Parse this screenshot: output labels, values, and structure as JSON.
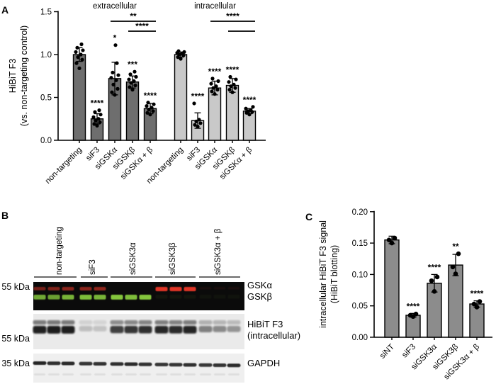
{
  "panels": {
    "a": {
      "letter": "A"
    },
    "b": {
      "letter": "B"
    },
    "c": {
      "letter": "C"
    }
  },
  "colors": {
    "extracellular_bar": "#6e6e6e",
    "intracellular_bar": "#c9c9c9",
    "panel_c_bar": "#8c8c8c",
    "axis": "#000000",
    "gsk_alpha_label": "#cf2b28",
    "gsk_beta_label": "#8fbf6a",
    "gsk_alpha_band": "#e03428",
    "gsk_beta_band": "#8bd13f",
    "dark_band": "#141414",
    "blot1_bg": "#0b0b0b",
    "blot2_bg": "#eaeaea",
    "blot3_bg": "#efefef"
  },
  "chart_data": [
    {
      "panel": "A",
      "type": "bar",
      "ylabel": [
        "HiBiT F3",
        "(vs. non-targeting control)"
      ],
      "ylim": [
        0,
        1.5
      ],
      "yticks": [
        [
          0,
          "0.0"
        ],
        [
          0.5,
          "0.5"
        ],
        [
          1.0,
          "1.0"
        ],
        [
          1.5,
          "1.5"
        ]
      ],
      "categories": [
        "non-targeting",
        "siF3",
        "siGSKα",
        "siGSKβ",
        "siGSKα + β"
      ],
      "groups": [
        {
          "label": "extracellular",
          "color_key": "extracellular_bar",
          "values": [
            1.0,
            0.25,
            0.72,
            0.68,
            0.37
          ],
          "errors": [
            0.08,
            0.06,
            0.19,
            0.07,
            0.06
          ],
          "sig": [
            "",
            "****",
            "*",
            "***",
            "****"
          ],
          "dots": [
            [
              0.84,
              0.9,
              0.94,
              0.97,
              1.0,
              1.03,
              1.05,
              1.08,
              1.12
            ],
            [
              0.17,
              0.19,
              0.21,
              0.23,
              0.25,
              0.27,
              0.3,
              0.33,
              0.35
            ],
            [
              0.53,
              0.56,
              0.6,
              0.65,
              0.7,
              0.73,
              0.76,
              0.79,
              0.9,
              1.11
            ],
            [
              0.59,
              0.62,
              0.64,
              0.67,
              0.69,
              0.71,
              0.74,
              0.77,
              0.8
            ],
            [
              0.3,
              0.32,
              0.34,
              0.36,
              0.38,
              0.4,
              0.42,
              0.44
            ]
          ]
        },
        {
          "label": "intracellular",
          "color_key": "intracellular_bar",
          "values": [
            1.0,
            0.23,
            0.61,
            0.64,
            0.34
          ],
          "errors": [
            0.03,
            0.09,
            0.08,
            0.08,
            0.03
          ],
          "sig": [
            "",
            "****",
            "****",
            "****",
            "****"
          ],
          "dots": [
            [
              0.95,
              0.97,
              0.99,
              1.0,
              1.01,
              1.02,
              1.03,
              1.04
            ],
            [
              0.16,
              0.18,
              0.2,
              0.22,
              0.24,
              0.43
            ],
            [
              0.54,
              0.57,
              0.59,
              0.61,
              0.63,
              0.66,
              0.69,
              0.72
            ],
            [
              0.56,
              0.59,
              0.61,
              0.63,
              0.65,
              0.68,
              0.71,
              0.74
            ],
            [
              0.3,
              0.32,
              0.33,
              0.34,
              0.35,
              0.37,
              0.39
            ]
          ]
        }
      ],
      "comparisons": [
        {
          "group": 0,
          "from": 2,
          "to": 4,
          "label": "**",
          "level": 0
        },
        {
          "group": 0,
          "from": 3,
          "to": 4,
          "label": "****",
          "level": 1
        },
        {
          "group": 1,
          "from": 2,
          "to": 4,
          "label": "****",
          "level": 0
        },
        {
          "group": 1,
          "from": 3,
          "to": 4,
          "label": "",
          "level": 1
        }
      ]
    },
    {
      "panel": "C",
      "type": "bar",
      "ylabel": [
        "intracellular HiBiT F3 signal",
        "(HiBiT blotting)"
      ],
      "ylim": [
        0,
        0.2
      ],
      "yticks": [
        [
          0,
          "0.00"
        ],
        [
          0.05,
          "0.05"
        ],
        [
          0.1,
          "0.10"
        ],
        [
          0.15,
          "0.15"
        ],
        [
          0.2,
          "0.20"
        ]
      ],
      "categories": [
        "siNT",
        "siF3",
        "siGSK3α",
        "siGSK3β",
        "siGSK3α + β"
      ],
      "color_key": "panel_c_bar",
      "values": [
        0.155,
        0.035,
        0.086,
        0.115,
        0.053
      ],
      "errors": [
        0.006,
        0.003,
        0.014,
        0.017,
        0.005
      ],
      "sig": [
        "",
        "****",
        "****",
        "**",
        "****"
      ],
      "dots": [
        [
          0.15,
          0.155,
          0.158
        ],
        [
          0.033,
          0.035,
          0.037
        ],
        [
          0.073,
          0.09,
          0.096
        ],
        [
          0.101,
          0.112,
          0.133
        ],
        [
          0.048,
          0.053,
          0.057
        ]
      ]
    }
  ],
  "blots": {
    "lane_groups": [
      {
        "label": "non-targeting",
        "lanes": 3
      },
      {
        "label": "siF3",
        "lanes": 2
      },
      {
        "label": "siGSK3α",
        "lanes": 3
      },
      {
        "label": "siGSK3β",
        "lanes": 3
      },
      {
        "label": "siGSK3α + β",
        "lanes": 3
      }
    ],
    "rows": [
      {
        "name": "GSK3-fluorescent-blot",
        "marker": "55 kDa",
        "right_labels": [
          {
            "text": "GSKα",
            "color_key": "gsk_alpha_label"
          },
          {
            "text": "GSKβ",
            "color_key": "gsk_beta_label"
          }
        ],
        "red": [
          0.5,
          0.55,
          0.6,
          0.6,
          0.62,
          0,
          0,
          0,
          1.0,
          1.0,
          1.0,
          0.07,
          0.07,
          0.07
        ],
        "green": [
          0.8,
          0.75,
          0.85,
          0.9,
          0.85,
          0.95,
          0.9,
          0.95,
          0.05,
          0.05,
          0.05,
          0.04,
          0.04,
          0.04
        ]
      },
      {
        "name": "HiBiT-F3-blot",
        "marker": "55 kDa",
        "right_labels": [
          {
            "text": "HiBiT F3"
          },
          {
            "text": "(intracellular)"
          }
        ],
        "intensity": [
          0.95,
          0.97,
          0.96,
          0.2,
          0.18,
          0.8,
          0.85,
          0.88,
          0.92,
          0.9,
          0.93,
          0.5,
          0.45,
          0.4
        ]
      },
      {
        "name": "GAPDH-blot",
        "marker": "35 kDa",
        "right_labels": [
          {
            "text": "GAPDH"
          }
        ],
        "intensity": [
          0.92,
          0.88,
          0.9,
          0.85,
          0.86,
          0.88,
          0.9,
          0.87,
          0.85,
          0.86,
          0.88,
          0.84,
          0.86,
          0.9
        ]
      }
    ]
  }
}
